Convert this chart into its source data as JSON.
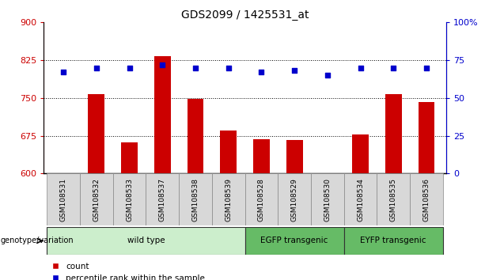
{
  "title": "GDS2099 / 1425531_at",
  "samples": [
    "GSM108531",
    "GSM108532",
    "GSM108533",
    "GSM108537",
    "GSM108538",
    "GSM108539",
    "GSM108528",
    "GSM108529",
    "GSM108530",
    "GSM108534",
    "GSM108535",
    "GSM108536"
  ],
  "counts": [
    601,
    758,
    662,
    833,
    748,
    686,
    669,
    667,
    601,
    678,
    757,
    742
  ],
  "percentiles": [
    67,
    70,
    70,
    72,
    70,
    70,
    67,
    68,
    65,
    70,
    70,
    70
  ],
  "ylim_left": [
    600,
    900
  ],
  "ylim_right": [
    0,
    100
  ],
  "yticks_left": [
    600,
    675,
    750,
    825,
    900
  ],
  "yticks_right": [
    0,
    25,
    50,
    75,
    100
  ],
  "group_configs": [
    {
      "label": "wild type",
      "start": 0,
      "end": 6,
      "color": "#cceecc"
    },
    {
      "label": "EGFP transgenic",
      "start": 6,
      "end": 9,
      "color": "#66bb66"
    },
    {
      "label": "EYFP transgenic",
      "start": 9,
      "end": 12,
      "color": "#66bb66"
    }
  ],
  "group_label": "genotype/variation",
  "bar_color": "#cc0000",
  "dot_color": "#0000cc",
  "legend_count_label": "count",
  "legend_pct_label": "percentile rank within the sample",
  "bar_width": 0.5,
  "title_color": "#000000",
  "left_axis_color": "#cc0000",
  "right_axis_color": "#0000cc",
  "grid_yticks": [
    675,
    750,
    825
  ]
}
